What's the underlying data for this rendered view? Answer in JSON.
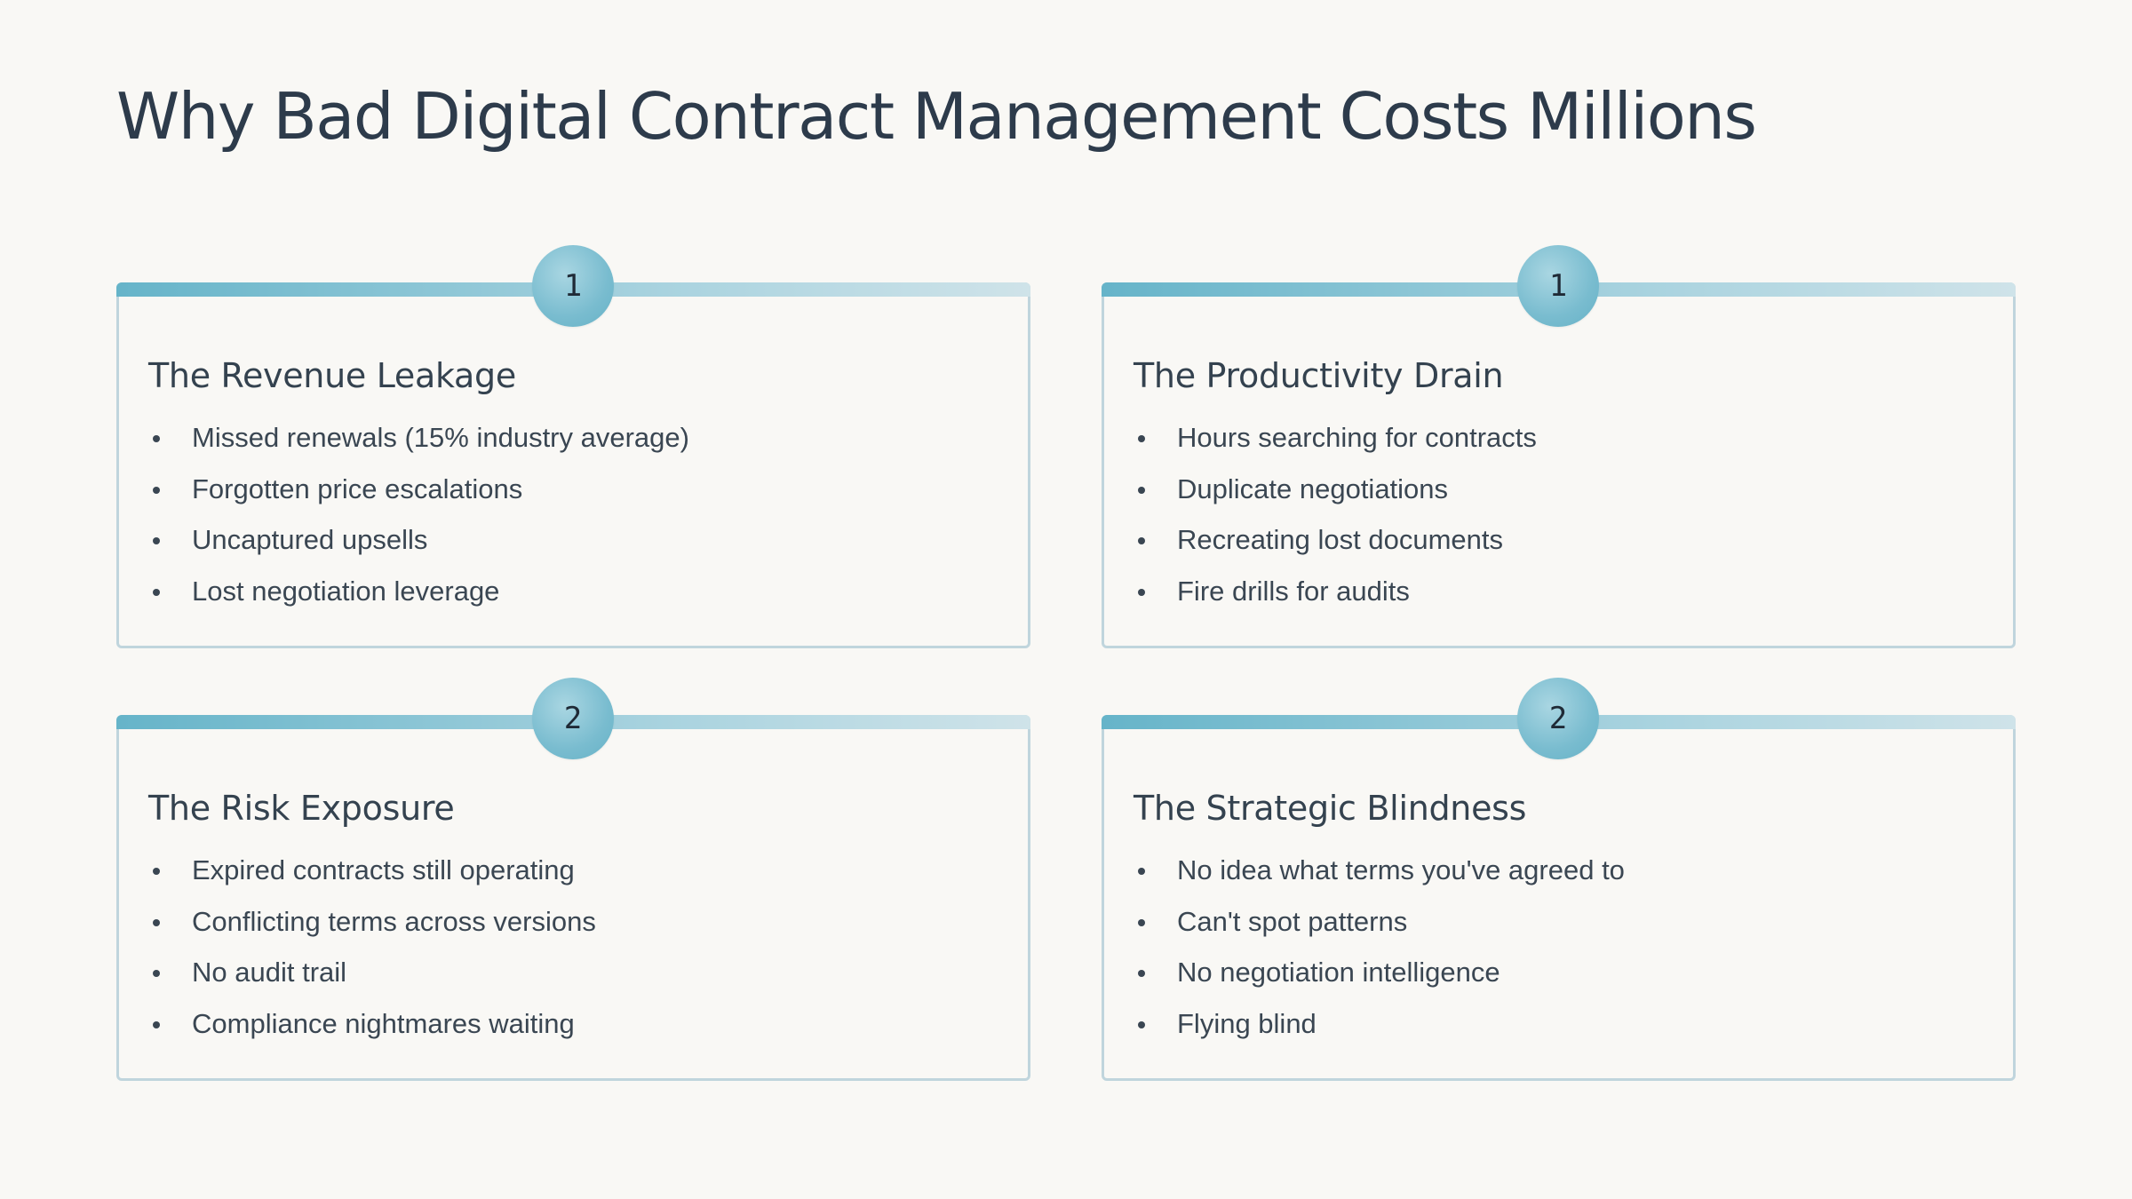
{
  "slide": {
    "title": "Why Bad Digital Contract Management Costs Millions"
  },
  "cards": [
    {
      "number": "1",
      "title": "The Revenue Leakage",
      "items": [
        "Missed renewals (15% industry average)",
        "Forgotten price escalations",
        "Uncaptured upsells",
        "Lost negotiation leverage"
      ]
    },
    {
      "number": "1",
      "title": "The Productivity Drain",
      "items": [
        "Hours searching for contracts",
        "Duplicate negotiations",
        "Recreating lost documents",
        "Fire drills for audits"
      ]
    },
    {
      "number": "2",
      "title": "The Risk Exposure",
      "items": [
        "Expired contracts still operating",
        "Conflicting terms across versions",
        "No audit trail",
        "Compliance nightmares waiting"
      ]
    },
    {
      "number": "2",
      "title": "The Strategic Blindness",
      "items": [
        "No idea what terms you've agreed to",
        "Can't spot patterns",
        "No negotiation intelligence",
        "Flying blind"
      ]
    }
  ],
  "colors": {
    "background": "#f9f8f5",
    "title_text": "#2d3b4b",
    "accent_start": "#66b4c9",
    "accent_end": "#cfe3e9",
    "card_border": "#c0d5dd"
  }
}
